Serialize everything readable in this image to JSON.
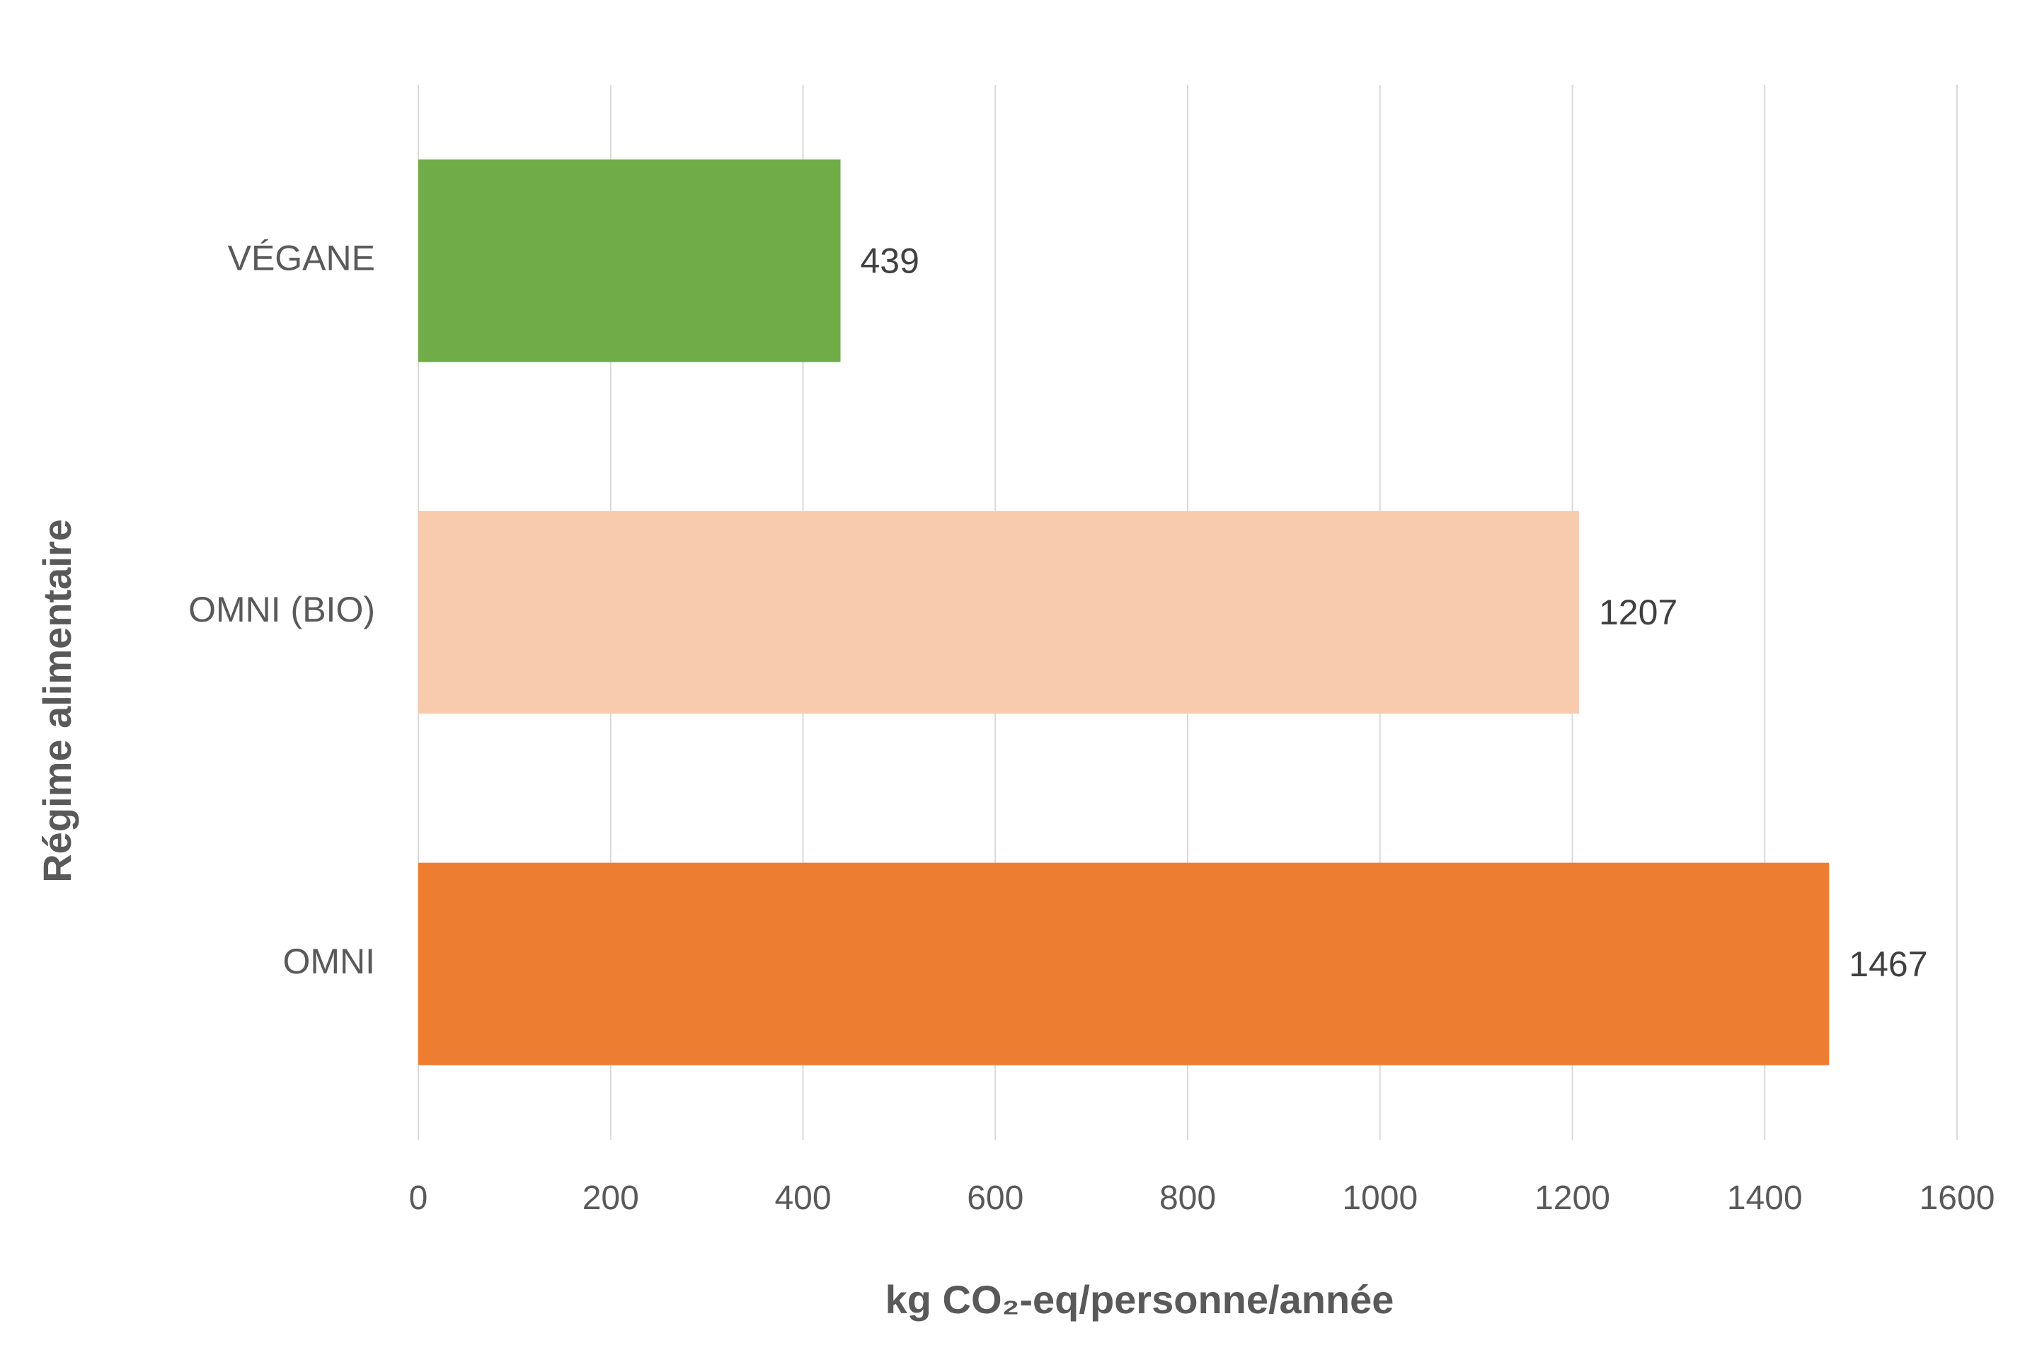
{
  "chart_data": {
    "type": "bar",
    "orientation": "horizontal",
    "categories": [
      "VÉGANE",
      "OMNI (BIO)",
      "OMNI"
    ],
    "values": [
      439,
      1207,
      1467
    ],
    "data_labels": [
      "439",
      "1207",
      "1467"
    ],
    "bar_colors": [
      "#70AD47",
      "#F8CBAD",
      "#ED7D31"
    ],
    "xlabel": "kg CO₂-eq/personne/année",
    "ylabel": "Régime alimentaire",
    "xlim": [
      0,
      1600
    ],
    "x_ticks": [
      0,
      200,
      400,
      600,
      800,
      1000,
      1200,
      1400,
      1600
    ],
    "x_tick_labels": [
      "0",
      "200",
      "400",
      "600",
      "800",
      "1000",
      "1200",
      "1400",
      "1600"
    ],
    "grid": "vertical",
    "gridline_color": "#D9D9D9",
    "legend": "none"
  }
}
